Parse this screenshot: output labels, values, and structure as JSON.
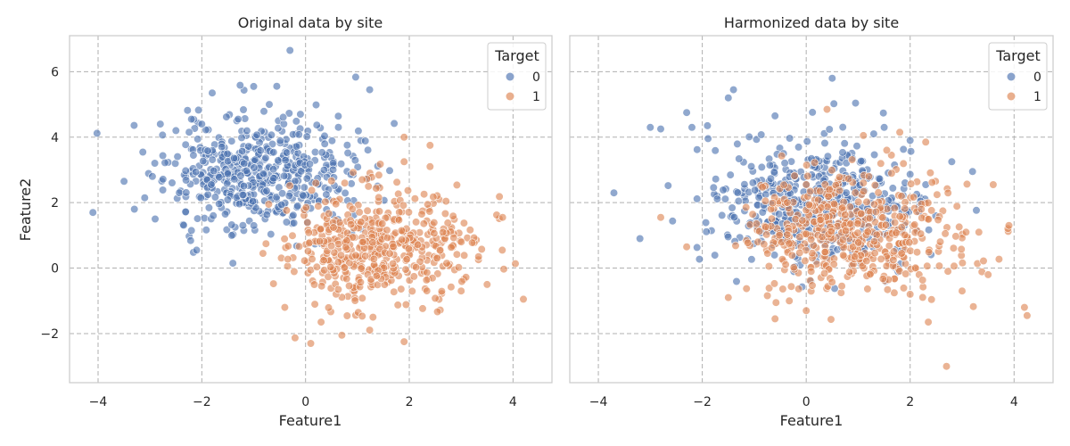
{
  "colors": {
    "class0": "#4c72b0",
    "class1": "#dd8452",
    "grid": "#b0b0b0",
    "frame": "#cccccc"
  },
  "chart_data": [
    {
      "type": "scatter",
      "title": "Original data by site",
      "xlabel": "Feature1",
      "ylabel": "Feature2",
      "xlim": [
        -4.55,
        4.75
      ],
      "ylim": [
        -3.5,
        7.1
      ],
      "xticks": [
        -4,
        -2,
        0,
        2,
        4
      ],
      "yticks": [
        -2,
        0,
        2,
        4,
        6
      ],
      "grid": true,
      "legend": {
        "title": "Target",
        "entries": [
          "0",
          "1"
        ],
        "position": "top-right"
      },
      "series": [
        {
          "name": "0",
          "generator": {
            "count": 500,
            "mean_x": -0.9,
            "mean_y": 2.9,
            "sd_x": 0.9,
            "sd_y": 0.85,
            "seed": 11
          },
          "x": [
            -4.1,
            -3.5,
            -3.3,
            -3.1,
            -2.8,
            -2.9,
            -2.5,
            -2.2,
            -2.0,
            -1.8,
            -1.3,
            -0.7,
            -0.3,
            -0.1,
            -1.0,
            -2.1,
            -2.2,
            -1.4
          ],
          "y": [
            1.7,
            2.65,
            1.8,
            2.15,
            4.4,
            1.5,
            4.2,
            4.55,
            4.4,
            5.35,
            4.55,
            5.0,
            6.65,
            4.7,
            5.55,
            0.55,
            1.15,
            0.15
          ]
        },
        {
          "name": "1",
          "generator": {
            "count": 500,
            "mean_x": 1.4,
            "mean_y": 0.7,
            "sd_x": 0.9,
            "sd_y": 0.85,
            "seed": 29
          },
          "x": [
            4.2,
            3.8,
            3.5,
            3.0,
            1.9,
            1.3,
            0.7,
            0.3,
            0.1,
            -0.4,
            1.9,
            2.4,
            1.9,
            2.4
          ],
          "y": [
            -0.95,
            1.55,
            -0.5,
            -0.7,
            -2.25,
            -1.5,
            -2.05,
            -1.65,
            -2.3,
            -1.2,
            3.25,
            3.75,
            4.0,
            3.1
          ]
        }
      ]
    },
    {
      "type": "scatter",
      "title": "Harmonized data by site",
      "xlabel": "Feature1",
      "ylabel": "",
      "xlim": [
        -4.55,
        4.75
      ],
      "ylim": [
        -3.5,
        7.1
      ],
      "xticks": [
        -4,
        -2,
        0,
        2,
        4
      ],
      "yticks": [
        -2,
        0,
        2,
        4,
        6
      ],
      "grid": true,
      "legend": {
        "title": "Target",
        "entries": [
          "0",
          "1"
        ],
        "position": "top-right"
      },
      "series": [
        {
          "name": "0",
          "generator": {
            "count": 500,
            "mean_x": 0.25,
            "mean_y": 1.9,
            "sd_x": 0.95,
            "sd_y": 0.95,
            "seed": 47
          },
          "x": [
            -3.7,
            -3.2,
            -3.0,
            -2.8,
            -2.3,
            -2.2,
            -1.9,
            -1.5,
            -1.4,
            -0.6,
            0.5,
            1.3,
            1.5,
            2.0,
            2.3,
            2.8,
            3.2
          ],
          "y": [
            2.3,
            0.9,
            4.3,
            4.25,
            4.75,
            4.3,
            4.35,
            5.2,
            5.45,
            4.65,
            5.8,
            4.1,
            4.3,
            3.9,
            2.55,
            3.25,
            2.95
          ]
        },
        {
          "name": "1",
          "generator": {
            "count": 500,
            "mean_x": 0.85,
            "mean_y": 1.15,
            "sd_x": 1.05,
            "sd_y": 0.95,
            "seed": 83
          },
          "x": [
            4.2,
            4.25,
            3.9,
            3.5,
            3.0,
            2.7,
            2.35,
            2.3,
            1.8,
            1.1,
            0.4,
            0.0,
            -0.6,
            -1.5,
            -2.3,
            -2.8,
            2.0,
            1.55
          ],
          "y": [
            -1.2,
            -1.45,
            1.3,
            -0.2,
            -0.7,
            -3.0,
            -1.65,
            3.85,
            4.15,
            4.05,
            4.85,
            -1.3,
            -1.55,
            -0.9,
            0.65,
            1.55,
            -0.8,
            3.6
          ]
        }
      ]
    }
  ]
}
